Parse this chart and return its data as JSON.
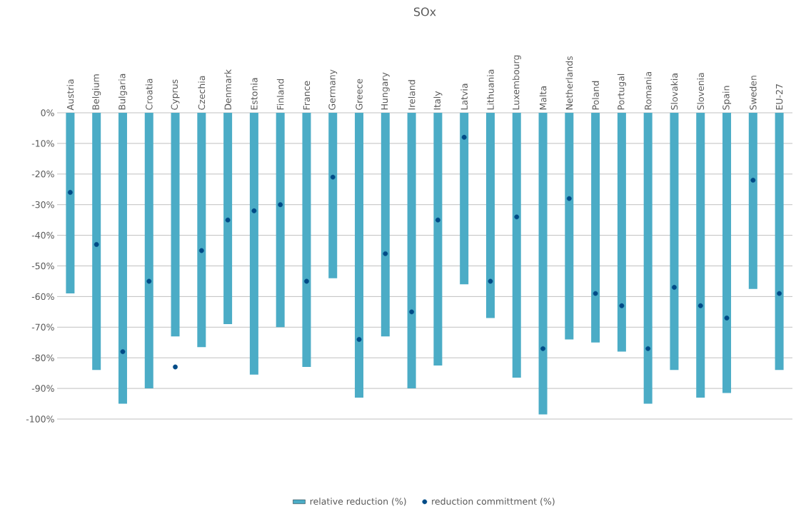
{
  "chart_data": {
    "type": "bar",
    "title": "SOx",
    "categories": [
      "Austria",
      "Belgium",
      "Bulgaria",
      "Croatia",
      "Cyprus",
      "Czechia",
      "Denmark",
      "Estonia",
      "Finland",
      "France",
      "Germany",
      "Greece",
      "Hungary",
      "Ireland",
      "Italy",
      "Latvia",
      "Lithuania",
      "Luxembourg",
      "Malta",
      "Netherlands",
      "Poland",
      "Portugal",
      "Romania",
      "Slovakia",
      "Slovenia",
      "Spain",
      "Sweden",
      "EU-27"
    ],
    "series": [
      {
        "name": "relative reduction (%)",
        "color": "#4bacc6",
        "values": [
          -59,
          -84,
          -95,
          -90,
          -73,
          -76.5,
          -69,
          -85.5,
          -70,
          -83,
          -54,
          -93,
          -73,
          -90,
          -82.5,
          -56,
          -67,
          -86.5,
          -98.5,
          -74,
          -75,
          -78,
          -95,
          -84,
          -93,
          -91.5,
          -57.5,
          -84
        ]
      },
      {
        "name": "reduction committment (%)",
        "type": "scatter",
        "color": "#004b87",
        "values": [
          -26,
          -43,
          -78,
          -55,
          -83,
          -45,
          -35,
          -32,
          -30,
          -55,
          -21,
          -74,
          -46,
          -65,
          -35,
          -8,
          -55,
          -34,
          -77,
          -28,
          -59,
          -63,
          -77,
          -57,
          -63,
          -67,
          -22,
          -59
        ]
      }
    ],
    "ylim": [
      -100,
      0
    ],
    "yticks": [
      {
        "value": 0,
        "label": "0%"
      },
      {
        "value": -10,
        "label": "-10%"
      },
      {
        "value": -20,
        "label": "-20%"
      },
      {
        "value": -30,
        "label": "-30%"
      },
      {
        "value": -40,
        "label": "-40%"
      },
      {
        "value": -50,
        "label": "-50%"
      },
      {
        "value": -60,
        "label": "-60%"
      },
      {
        "value": -70,
        "label": "-70%"
      },
      {
        "value": -80,
        "label": "-80%"
      },
      {
        "value": -90,
        "label": "-90%"
      },
      {
        "value": -100,
        "label": "-100%"
      }
    ],
    "grid": "y",
    "legend": "bottom"
  }
}
